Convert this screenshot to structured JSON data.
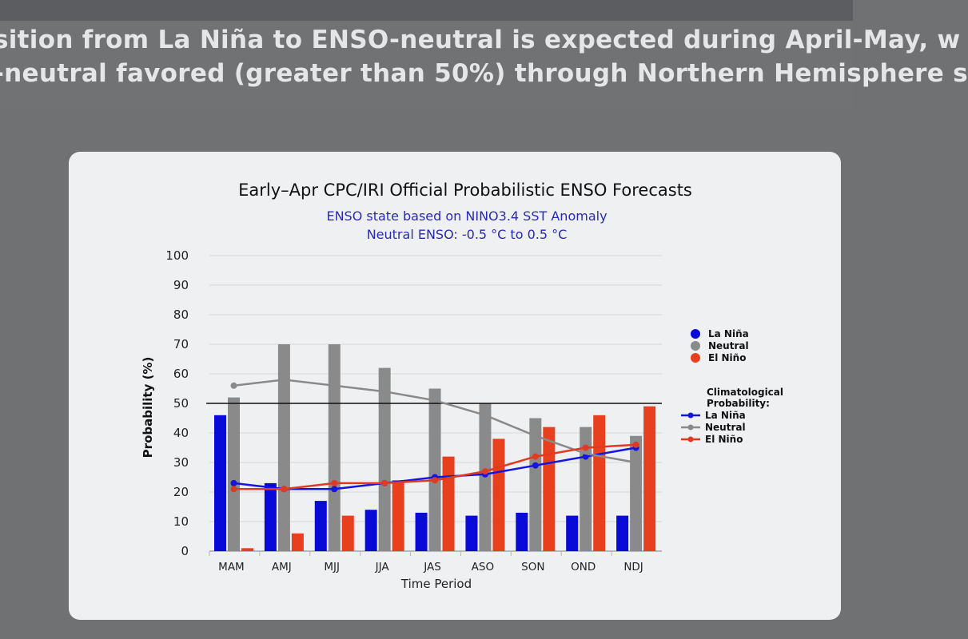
{
  "banner": {
    "line1": "sition from La Niña to ENSO-neutral is expected during April-May, w",
    "line2": "-neutral favored (greater than 50%) through Northern Hemisphere s"
  },
  "chart_data": {
    "type": "bar",
    "title": "Early–Apr CPC/IRI Official Probabilistic ENSO Forecasts",
    "subtitle1": "ENSO state based on NINO3.4 SST Anomaly",
    "subtitle2": "Neutral ENSO: -0.5 °C to 0.5 °C",
    "xlabel": "Time Period",
    "ylabel": "Probability (%)",
    "ylim": [
      0,
      100
    ],
    "yticks": [
      "0",
      "10",
      "20",
      "30",
      "40",
      "50",
      "60",
      "70",
      "80",
      "90",
      "100"
    ],
    "categories": [
      "MAM",
      "AMJ",
      "MJJ",
      "JJA",
      "JAS",
      "ASO",
      "SON",
      "OND",
      "NDJ"
    ],
    "series": [
      {
        "name": "La Niña",
        "color": "#0a0ad8",
        "values": [
          46,
          23,
          17,
          14,
          13,
          12,
          13,
          12,
          12
        ]
      },
      {
        "name": "Neutral",
        "color": "#8a8a8a",
        "values": [
          52,
          70,
          70,
          62,
          55,
          50,
          45,
          42,
          39
        ]
      },
      {
        "name": "El Niño",
        "color": "#e8401e",
        "values": [
          1,
          6,
          12,
          24,
          32,
          38,
          42,
          46,
          49
        ]
      }
    ],
    "climatology": {
      "title": "Climatological Probability:",
      "lines": [
        {
          "name": "La Niña",
          "color": "#1515e0",
          "values": [
            23,
            21,
            21,
            23,
            25,
            26,
            29,
            32,
            35
          ]
        },
        {
          "name": "Neutral",
          "color": "#8a8a8a",
          "values": [
            56,
            58,
            56,
            54,
            51,
            46,
            39,
            33,
            30
          ]
        },
        {
          "name": "El Niño",
          "color": "#e03a22",
          "values": [
            21,
            21,
            23,
            23,
            24,
            27,
            32,
            35,
            36
          ]
        }
      ]
    },
    "reference_line": 50,
    "legend_position": "right"
  }
}
